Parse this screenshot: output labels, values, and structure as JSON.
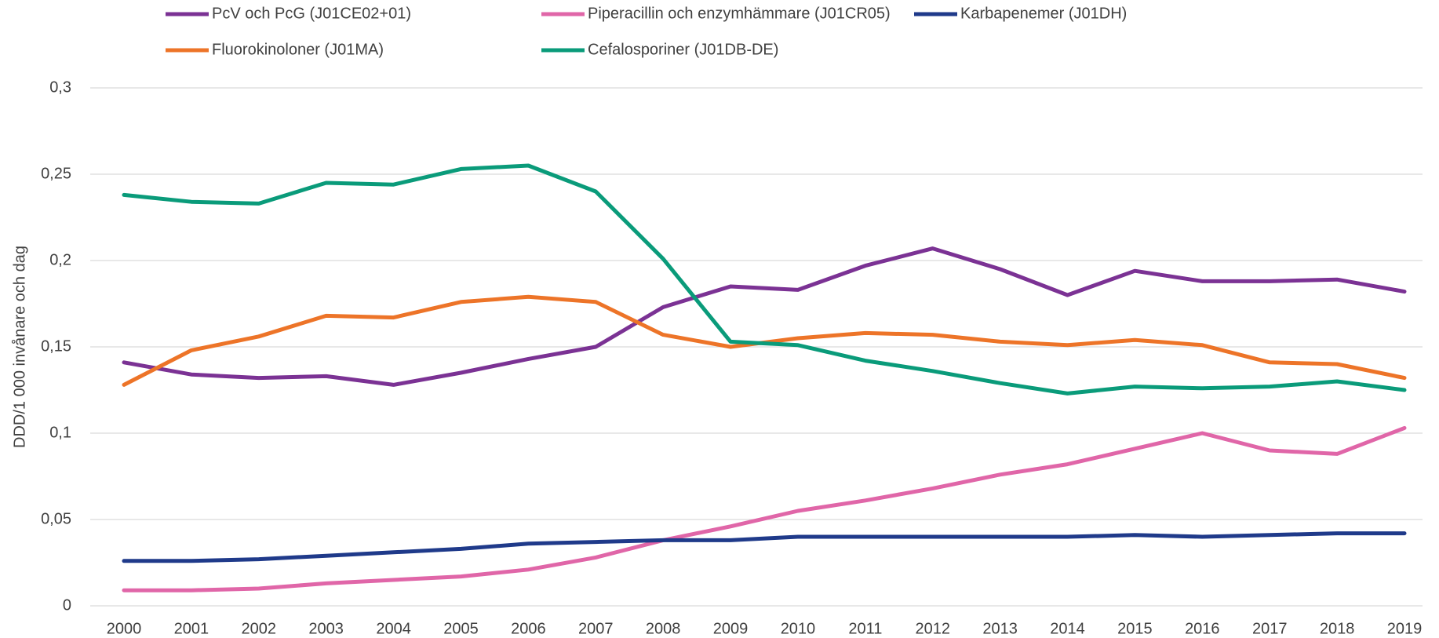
{
  "chart_data": {
    "type": "line",
    "y_label": "DDD/1 000 invånare och dag",
    "categories": [
      "2000",
      "2001",
      "2002",
      "2003",
      "2004",
      "2005",
      "2006",
      "2007",
      "2008",
      "2009",
      "2010",
      "2011",
      "2012",
      "2013",
      "2014",
      "2015",
      "2016",
      "2017",
      "2018",
      "2019"
    ],
    "series": [
      {
        "name": "PcV och PcG (J01CE02+01)",
        "color": "#7b3294",
        "values": [
          0.141,
          0.134,
          0.132,
          0.133,
          0.128,
          0.135,
          0.143,
          0.15,
          0.173,
          0.185,
          0.183,
          0.197,
          0.207,
          0.195,
          0.18,
          0.194,
          0.188,
          0.188,
          0.189,
          0.182
        ]
      },
      {
        "name": "Piperacillin och enzymhämmare (J01CR05)",
        "color": "#e066a8",
        "values": [
          0.009,
          0.009,
          0.01,
          0.013,
          0.015,
          0.017,
          0.021,
          0.028,
          0.038,
          0.046,
          0.055,
          0.061,
          0.068,
          0.076,
          0.082,
          0.091,
          0.1,
          0.09,
          0.088,
          0.103
        ]
      },
      {
        "name": "Karbapenemer (J01DH)",
        "color": "#1f3a8a",
        "values": [
          0.026,
          0.026,
          0.027,
          0.029,
          0.031,
          0.033,
          0.036,
          0.037,
          0.038,
          0.038,
          0.04,
          0.04,
          0.04,
          0.04,
          0.04,
          0.041,
          0.04,
          0.041,
          0.042,
          0.042
        ]
      },
      {
        "name": "Fluorokinoloner (J01MA)",
        "color": "#ed7428",
        "values": [
          0.128,
          0.148,
          0.156,
          0.168,
          0.167,
          0.176,
          0.179,
          0.176,
          0.157,
          0.15,
          0.155,
          0.158,
          0.157,
          0.153,
          0.151,
          0.154,
          0.151,
          0.141,
          0.14,
          0.132
        ]
      },
      {
        "name": "Cefalosporiner (J01DB-DE)",
        "color": "#0a9b7a",
        "values": [
          0.238,
          0.234,
          0.233,
          0.245,
          0.244,
          0.253,
          0.255,
          0.24,
          0.201,
          0.153,
          0.151,
          0.142,
          0.136,
          0.129,
          0.123,
          0.127,
          0.126,
          0.127,
          0.13,
          0.125
        ]
      }
    ],
    "ylim": [
      0,
      0.3
    ],
    "yticks": [
      0,
      {
        "value": 0.05,
        "label": "0,05"
      },
      {
        "value": 0.1,
        "label": "0,1"
      },
      {
        "value": 0.15,
        "label": "0,15"
      },
      {
        "value": 0.2,
        "label": "0,2"
      },
      {
        "value": 0.25,
        "label": "0,25"
      },
      {
        "value": 0.3,
        "label": "0,3"
      }
    ],
    "grid": true
  }
}
